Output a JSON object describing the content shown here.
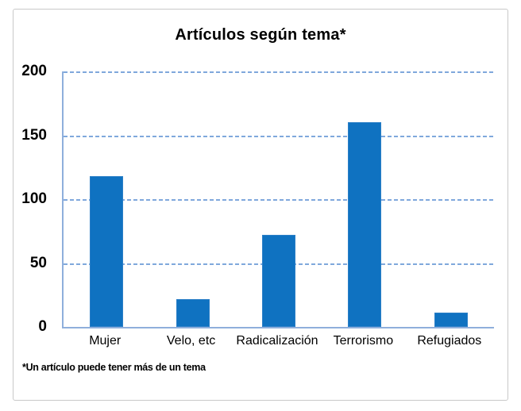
{
  "frame": {
    "background": "#ffffff",
    "border_color": "#c9c9c9"
  },
  "chart_data": {
    "type": "bar",
    "title": "Artículos según tema*",
    "categories": [
      "Mujer",
      "Velo, etc",
      "Radicalización",
      "Terrorismo",
      "Refugiados"
    ],
    "values": [
      118,
      22,
      72,
      160,
      11
    ],
    "xlabel": "",
    "ylabel": "",
    "ylim": [
      0,
      200
    ],
    "yticks": [
      0,
      50,
      100,
      150,
      200
    ],
    "grid": "horizontal-dashed",
    "legend": "none",
    "colors": {
      "bar": "#0f72c1",
      "bar_edge": "#7fa8dc",
      "gridline": "#7fa8dc",
      "axis": "#8fafdc",
      "text": "#000000"
    }
  },
  "footnote": "*Un artículo puede tener más de un tema"
}
